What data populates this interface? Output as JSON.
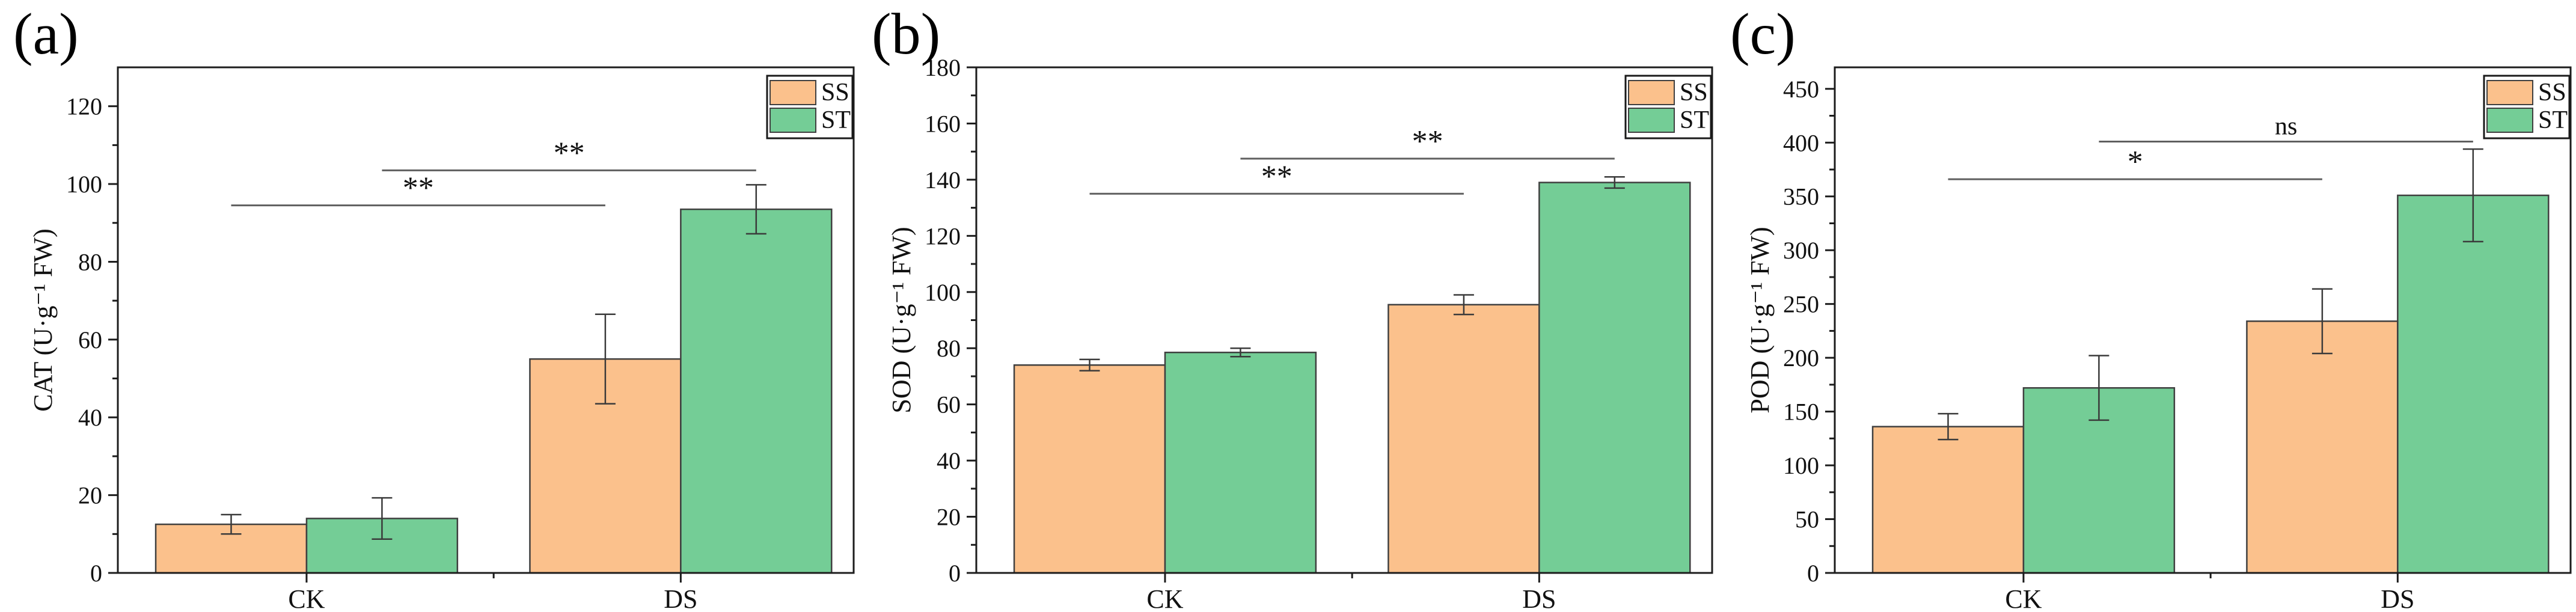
{
  "figure": {
    "description_visible_text": [
      "(a)",
      "(b)",
      "(c)",
      "SS",
      "ST",
      "CK",
      "DS",
      "**",
      "*",
      "ns"
    ],
    "colors": {
      "ss_fill": "#FBC18C",
      "st_fill": "#74CD96",
      "bar_edge": "#3F3F3F",
      "axis": "#1C1C1C",
      "error_bar": "#3A3A3A",
      "sig_line": "#5F5F5F",
      "background": "#FFFFFF",
      "text": "#111111"
    }
  },
  "legend": {
    "items": [
      {
        "label": "SS",
        "color": "#FBC18C"
      },
      {
        "label": "ST",
        "color": "#74CD96"
      }
    ],
    "position": "top-right"
  },
  "chart_data": [
    {
      "type": "bar",
      "panel_label": "(a)",
      "title": "",
      "xlabel": "",
      "ylabel": "CAT (U·g⁻¹ FW)",
      "categories": [
        "CK",
        "DS"
      ],
      "series": [
        {
          "name": "SS",
          "color": "#FBC18C",
          "values": [
            12.5,
            55
          ],
          "errors": [
            2.5,
            11.5
          ]
        },
        {
          "name": "ST",
          "color": "#74CD96",
          "values": [
            14,
            93.5
          ],
          "errors": [
            5.3,
            6.3
          ]
        }
      ],
      "ylim": [
        0,
        130
      ],
      "ytick_step": 20,
      "yminor_step": 10,
      "grid": false,
      "legend_position": "top-right",
      "significance": [
        {
          "series": "SS",
          "label": "**",
          "y": 94.5
        },
        {
          "series": "ST",
          "label": "**",
          "y": 103.5
        }
      ]
    },
    {
      "type": "bar",
      "panel_label": "(b)",
      "title": "",
      "xlabel": "",
      "ylabel": "SOD (U·g⁻¹ FW)",
      "categories": [
        "CK",
        "DS"
      ],
      "series": [
        {
          "name": "SS",
          "color": "#FBC18C",
          "values": [
            74,
            95.5
          ],
          "errors": [
            2,
            3.5
          ]
        },
        {
          "name": "ST",
          "color": "#74CD96",
          "values": [
            78.5,
            139
          ],
          "errors": [
            1.5,
            2
          ]
        }
      ],
      "ylim": [
        0,
        180
      ],
      "ytick_step": 20,
      "yminor_step": 10,
      "grid": false,
      "legend_position": "top-right",
      "significance": [
        {
          "series": "SS",
          "label": "**",
          "y": 135
        },
        {
          "series": "ST",
          "label": "**",
          "y": 147.5
        }
      ]
    },
    {
      "type": "bar",
      "panel_label": "(c)",
      "title": "",
      "xlabel": "",
      "ylabel": "POD (U·g⁻¹ FW)",
      "categories": [
        "CK",
        "DS"
      ],
      "series": [
        {
          "name": "SS",
          "color": "#FBC18C",
          "values": [
            136,
            234
          ],
          "errors": [
            12,
            30
          ]
        },
        {
          "name": "ST",
          "color": "#74CD96",
          "values": [
            172,
            351
          ],
          "errors": [
            30,
            43
          ]
        }
      ],
      "ylim": [
        0,
        470
      ],
      "ytick_step": 50,
      "yminor_step": 25,
      "grid": false,
      "legend_position": "top-right",
      "significance": [
        {
          "series": "SS",
          "label": "*",
          "y": 366
        },
        {
          "series": "ST",
          "label": "ns",
          "y": 401
        }
      ]
    }
  ]
}
